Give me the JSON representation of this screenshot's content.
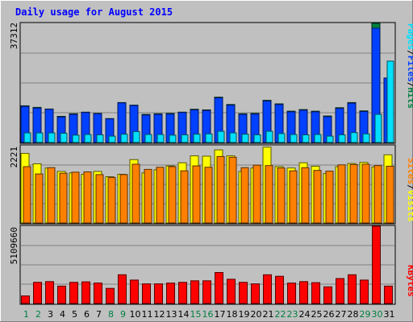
{
  "chart_data": {
    "type": "bar",
    "title": "Daily usage for August 2015",
    "categories": [
      "1",
      "2",
      "3",
      "4",
      "5",
      "6",
      "7",
      "8",
      "9",
      "10",
      "11",
      "12",
      "13",
      "14",
      "15",
      "16",
      "17",
      "18",
      "19",
      "20",
      "21",
      "22",
      "23",
      "24",
      "25",
      "26",
      "27",
      "28",
      "29",
      "30",
      "31"
    ],
    "weekend_days": [
      "1",
      "2",
      "8",
      "9",
      "15",
      "16",
      "22",
      "23",
      "29",
      "30"
    ],
    "panels": [
      {
        "name": "hits-pages-files",
        "axis_max_label": "37312",
        "ymax": 37312,
        "legend": [
          {
            "text": "Pages",
            "color": "#00e0ff"
          },
          {
            "text": "/",
            "color": "#000000"
          },
          {
            "text": "Files",
            "color": "#0040ff"
          },
          {
            "text": "/",
            "color": "#000000"
          },
          {
            "text": "Hits",
            "color": "#008040"
          }
        ],
        "series": [
          {
            "name": "Hits",
            "color": "#008040",
            "values": [
              11500,
              11000,
              10500,
              8200,
              9000,
              9500,
              9100,
              7500,
              12500,
              11700,
              8800,
              9000,
              9100,
              9500,
              10400,
              10200,
              14200,
              11900,
              9000,
              9100,
              13200,
              12100,
              9800,
              10300,
              9800,
              8300,
              10900,
              12500,
              9900,
              37312,
              19700
            ]
          },
          {
            "name": "Files",
            "color": "#0040ff",
            "values": [
              11300,
              10800,
              10400,
              8000,
              8800,
              9400,
              9000,
              7400,
              12400,
              11600,
              8600,
              8800,
              8900,
              9400,
              10200,
              10000,
              14000,
              11700,
              8800,
              8900,
              13000,
              11900,
              9600,
              10100,
              9600,
              8100,
              10700,
              12300,
              9700,
              35800,
              20200
            ]
          },
          {
            "name": "Pages",
            "color": "#00e0ff",
            "values": [
              3000,
              3000,
              3000,
              2900,
              2300,
              2500,
              2400,
              2000,
              2600,
              3400,
              2500,
              2500,
              2300,
              2400,
              2600,
              2700,
              3500,
              3000,
              2600,
              2400,
              3500,
              2800,
              2500,
              2400,
              2500,
              2000,
              2400,
              3100,
              2700,
              8800,
              25500
            ]
          }
        ]
      },
      {
        "name": "sites-visits",
        "axis_max_label": "2221",
        "ymax": 2221,
        "legend": [
          {
            "text": "Sites",
            "color": "#ff8000"
          },
          {
            "text": "/",
            "color": "#000000"
          },
          {
            "text": "Visits",
            "color": "#ffff00"
          }
        ],
        "series": [
          {
            "name": "Visits",
            "color": "#ffff00",
            "values": [
              2000,
              1700,
              1580,
              1480,
              1440,
              1400,
              1480,
              1330,
              1400,
              1820,
              1440,
              1530,
              1640,
              1730,
              1930,
              1920,
              2100,
              1930,
              1480,
              1580,
              2180,
              1620,
              1580,
              1730,
              1630,
              1420,
              1620,
              1710,
              1740,
              1610,
              1960
            ]
          },
          {
            "name": "Sites",
            "color": "#ff8000",
            "values": [
              1620,
              1410,
              1590,
              1430,
              1460,
              1470,
              1390,
              1310,
              1390,
              1690,
              1540,
              1600,
              1620,
              1500,
              1640,
              1600,
              1910,
              1890,
              1590,
              1660,
              1650,
              1580,
              1500,
              1590,
              1510,
              1490,
              1670,
              1680,
              1690,
              1650,
              1630
            ]
          }
        ]
      },
      {
        "name": "kbytes",
        "axis_max_label": "5109660",
        "ymax": 5109660,
        "legend": [
          {
            "text": "KBytes",
            "color": "#ff0000"
          }
        ],
        "series": [
          {
            "name": "KBytes",
            "color": "#ff0000",
            "values": [
              500000,
              1400000,
              1450000,
              1150000,
              1400000,
              1430000,
              1350000,
              1000000,
              1900000,
              1550000,
              1300000,
              1300000,
              1350000,
              1400000,
              1500000,
              1500000,
              2050000,
              1600000,
              1400000,
              1300000,
              1900000,
              1800000,
              1350000,
              1450000,
              1380000,
              1100000,
              1650000,
              1900000,
              1550000,
              5109660,
              1150000
            ]
          }
        ]
      }
    ]
  }
}
